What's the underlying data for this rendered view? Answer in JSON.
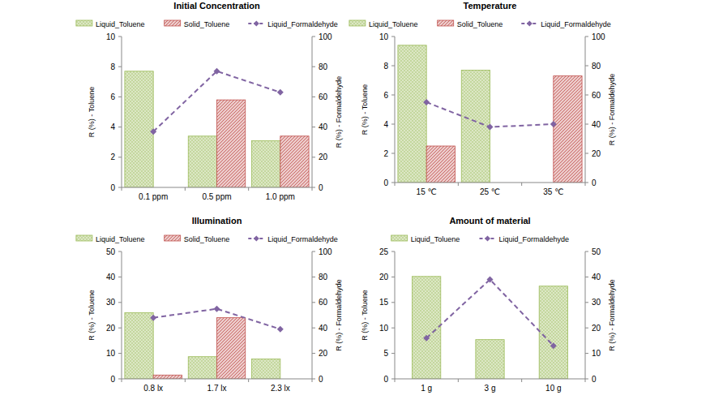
{
  "chart_data": [
    {
      "type": "bar",
      "title": "Initial Concentration",
      "categories": [
        "0.1 ppm",
        "0.5 ppm",
        "1.0 ppm"
      ],
      "series": [
        {
          "name": "Liquid_Toluene",
          "type": "bar",
          "color": "#9bbb59",
          "values": [
            7.7,
            3.4,
            3.1
          ]
        },
        {
          "name": "Solid_Toluene",
          "type": "bar",
          "color": "#c0504d",
          "values": [
            null,
            5.8,
            3.4
          ]
        },
        {
          "name": "Liquid_Formaldehyde",
          "type": "line",
          "axis": "y2",
          "color": "#8064a2",
          "line_style": "dashed",
          "marker": "diamond",
          "values": [
            37,
            77,
            63
          ]
        }
      ],
      "y_label": "R (%) - Toluene",
      "y2_label": "R (%) - Formaldehyde",
      "ylim": [
        0,
        10
      ],
      "yticks": [
        0,
        2,
        4,
        6,
        8,
        10
      ],
      "y2lim": [
        0,
        100
      ],
      "y2ticks": [
        0,
        20,
        40,
        60,
        80,
        100
      ],
      "legend": "top",
      "grid": false
    },
    {
      "type": "bar",
      "title": "Temperature",
      "categories": [
        "15 ℃",
        "25 ℃",
        "35 ℃"
      ],
      "series": [
        {
          "name": "Liquid_Toluene",
          "type": "bar",
          "color": "#9bbb59",
          "values": [
            9.4,
            7.7,
            null
          ]
        },
        {
          "name": "Solid_Toluene",
          "type": "bar",
          "color": "#c0504d",
          "values": [
            2.5,
            null,
            7.3
          ]
        },
        {
          "name": "Liquid_Formaldehyde",
          "type": "line",
          "axis": "y2",
          "color": "#8064a2",
          "line_style": "dashed",
          "marker": "diamond",
          "values": [
            55,
            38,
            40
          ]
        }
      ],
      "y_label": "R (%) - Toluene",
      "y2_label": "R (%) - Formaldehyde",
      "ylim": [
        0,
        10
      ],
      "yticks": [
        0,
        2,
        4,
        6,
        8,
        10
      ],
      "y2lim": [
        0,
        100
      ],
      "y2ticks": [
        0,
        20,
        40,
        60,
        80,
        100
      ],
      "legend": "top",
      "grid": false
    },
    {
      "type": "bar",
      "title": "Illumination",
      "categories": [
        "0.8 lx",
        "1.7 lx",
        "2.3 lx"
      ],
      "series": [
        {
          "name": "Liquid_Toluene",
          "type": "bar",
          "color": "#9bbb59",
          "values": [
            26,
            8.7,
            7.8
          ]
        },
        {
          "name": "Solid_Toluene",
          "type": "bar",
          "color": "#c0504d",
          "values": [
            1.5,
            24,
            null
          ]
        },
        {
          "name": "Liquid_Formaldehyde",
          "type": "line",
          "axis": "y2",
          "color": "#8064a2",
          "line_style": "dashed",
          "marker": "diamond",
          "values": [
            48,
            55,
            39
          ]
        }
      ],
      "y_label": "R (%) - Toluene",
      "y2_label": "R (%) - Formaldehyde",
      "ylim": [
        0,
        50
      ],
      "yticks": [
        0,
        10,
        20,
        30,
        40,
        50
      ],
      "y2lim": [
        0,
        100
      ],
      "y2ticks": [
        0,
        20,
        40,
        60,
        80,
        100
      ],
      "legend": "top",
      "grid": false
    },
    {
      "type": "bar",
      "title": "Amount of material",
      "categories": [
        "1 g",
        "3 g",
        "10 g"
      ],
      "series": [
        {
          "name": "Liquid_Toluene",
          "type": "bar",
          "color": "#9bbb59",
          "values": [
            20.1,
            7.7,
            18.2
          ]
        },
        {
          "name": "Liquid_Formaldehyde",
          "type": "line",
          "axis": "y2",
          "color": "#8064a2",
          "line_style": "dashed",
          "marker": "diamond",
          "values": [
            16,
            39,
            13
          ]
        }
      ],
      "y_label": "R (%) - Toluene",
      "y2_label": "R (%) - Formaldehyde",
      "ylim": [
        0,
        25
      ],
      "yticks": [
        0,
        5,
        10,
        15,
        20,
        25
      ],
      "y2lim": [
        0,
        50
      ],
      "y2ticks": [
        0,
        10,
        20,
        30,
        40,
        50
      ],
      "legend": "top",
      "grid": false
    }
  ]
}
